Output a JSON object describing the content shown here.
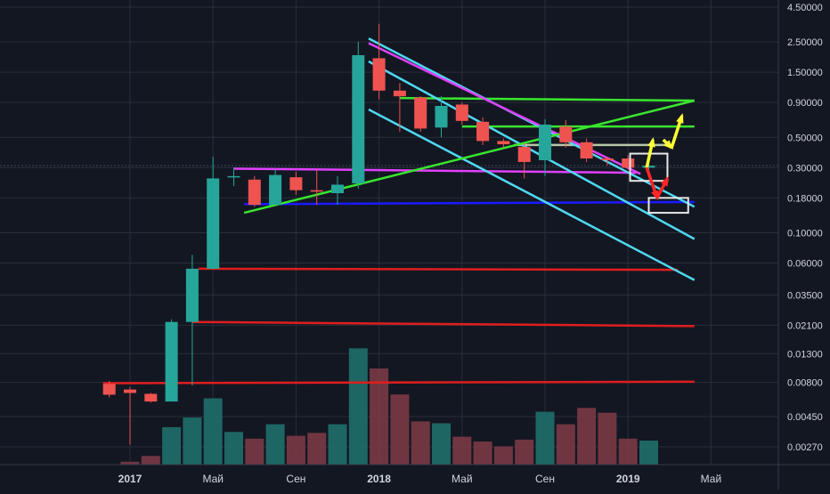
{
  "chart_data": {
    "type": "candlestick",
    "price_scale": "log",
    "grid": true,
    "y_ticks": [
      "4.50000",
      "2.50000",
      "1.50000",
      "0.90000",
      "0.50000",
      "0.30000",
      "0.18000",
      "0.10000",
      "0.06000",
      "0.03500",
      "0.02100",
      "0.01300",
      "0.00800",
      "0.00450",
      "0.00270"
    ],
    "y_tick_values": [
      4.5,
      2.5,
      1.5,
      0.9,
      0.5,
      0.3,
      0.18,
      0.1,
      0.06,
      0.035,
      0.021,
      0.013,
      0.008,
      0.0045,
      0.0027
    ],
    "x_ticks": [
      {
        "label": "2017",
        "month": 0,
        "bold": true
      },
      {
        "label": "Май",
        "month": 4,
        "bold": false
      },
      {
        "label": "Сен",
        "month": 8,
        "bold": false
      },
      {
        "label": "2018",
        "month": 12,
        "bold": true
      },
      {
        "label": "Май",
        "month": 16,
        "bold": false
      },
      {
        "label": "Сен",
        "month": 20,
        "bold": false
      },
      {
        "label": "2019",
        "month": 24,
        "bold": true
      },
      {
        "label": "Май",
        "month": 28,
        "bold": false
      }
    ],
    "candles": [
      {
        "month": -1,
        "o": 0.0078,
        "h": 0.0082,
        "l": 0.0062,
        "c": 0.0065
      },
      {
        "month": 0,
        "o": 0.0071,
        "h": 0.0074,
        "l": 0.0028,
        "c": 0.0067
      },
      {
        "month": 1,
        "o": 0.0066,
        "h": 0.0067,
        "l": 0.0057,
        "c": 0.0058
      },
      {
        "month": 2,
        "o": 0.0058,
        "h": 0.0232,
        "l": 0.0058,
        "c": 0.0222
      },
      {
        "month": 3,
        "o": 0.0222,
        "h": 0.069,
        "l": 0.0076,
        "c": 0.0545
      },
      {
        "month": 4,
        "o": 0.0545,
        "h": 0.36,
        "l": 0.054,
        "c": 0.25
      },
      {
        "month": 5,
        "o": 0.26,
        "h": 0.3,
        "l": 0.22,
        "c": 0.26
      },
      {
        "month": 6,
        "o": 0.245,
        "h": 0.26,
        "l": 0.155,
        "c": 0.16
      },
      {
        "month": 7,
        "o": 0.16,
        "h": 0.29,
        "l": 0.16,
        "c": 0.265
      },
      {
        "month": 8,
        "o": 0.255,
        "h": 0.28,
        "l": 0.19,
        "c": 0.205
      },
      {
        "month": 9,
        "o": 0.205,
        "h": 0.29,
        "l": 0.16,
        "c": 0.2
      },
      {
        "month": 10,
        "o": 0.195,
        "h": 0.26,
        "l": 0.16,
        "c": 0.225
      },
      {
        "month": 11,
        "o": 0.23,
        "h": 2.5,
        "l": 0.21,
        "c": 2.0
      },
      {
        "month": 12,
        "o": 1.9,
        "h": 3.4,
        "l": 0.95,
        "c": 1.1
      },
      {
        "month": 13,
        "o": 1.1,
        "h": 1.25,
        "l": 0.55,
        "c": 1.0
      },
      {
        "month": 14,
        "o": 0.98,
        "h": 1.0,
        "l": 0.55,
        "c": 0.58
      },
      {
        "month": 15,
        "o": 0.59,
        "h": 1.0,
        "l": 0.5,
        "c": 0.85
      },
      {
        "month": 16,
        "o": 0.87,
        "h": 0.9,
        "l": 0.62,
        "c": 0.66
      },
      {
        "month": 17,
        "o": 0.65,
        "h": 0.7,
        "l": 0.44,
        "c": 0.47
      },
      {
        "month": 18,
        "o": 0.47,
        "h": 0.49,
        "l": 0.42,
        "c": 0.445
      },
      {
        "month": 19,
        "o": 0.425,
        "h": 0.45,
        "l": 0.25,
        "c": 0.33
      },
      {
        "month": 20,
        "o": 0.34,
        "h": 0.68,
        "l": 0.26,
        "c": 0.62
      },
      {
        "month": 21,
        "o": 0.6,
        "h": 0.67,
        "l": 0.42,
        "c": 0.46
      },
      {
        "month": 22,
        "o": 0.46,
        "h": 0.49,
        "l": 0.33,
        "c": 0.35
      },
      {
        "month": 23,
        "o": 0.35,
        "h": 0.36,
        "l": 0.31,
        "c": 0.34
      },
      {
        "month": 24,
        "o": 0.35,
        "h": 0.37,
        "l": 0.29,
        "c": 0.3
      },
      {
        "month": 25,
        "o": 0.3,
        "h": 0.32,
        "l": 0.27,
        "c": 0.31
      }
    ],
    "volume": [
      {
        "month": 0,
        "v": 0.3,
        "up": false
      },
      {
        "month": 1,
        "v": 0.9,
        "up": false
      },
      {
        "month": 2,
        "v": 3.9,
        "up": true
      },
      {
        "month": 3,
        "v": 4.9,
        "up": true
      },
      {
        "month": 4,
        "v": 6.9,
        "up": true
      },
      {
        "month": 5,
        "v": 3.4,
        "up": true
      },
      {
        "month": 6,
        "v": 2.7,
        "up": false
      },
      {
        "month": 7,
        "v": 4.2,
        "up": true
      },
      {
        "month": 8,
        "v": 3.0,
        "up": false
      },
      {
        "month": 9,
        "v": 3.3,
        "up": false
      },
      {
        "month": 10,
        "v": 4.2,
        "up": true
      },
      {
        "month": 11,
        "v": 12.1,
        "up": true
      },
      {
        "month": 12,
        "v": 10.0,
        "up": false
      },
      {
        "month": 13,
        "v": 7.3,
        "up": false
      },
      {
        "month": 14,
        "v": 4.5,
        "up": false
      },
      {
        "month": 15,
        "v": 4.3,
        "up": true
      },
      {
        "month": 16,
        "v": 2.9,
        "up": false
      },
      {
        "month": 17,
        "v": 2.4,
        "up": false
      },
      {
        "month": 18,
        "v": 1.9,
        "up": false
      },
      {
        "month": 19,
        "v": 2.6,
        "up": false
      },
      {
        "month": 20,
        "v": 5.5,
        "up": true
      },
      {
        "month": 21,
        "v": 4.2,
        "up": false
      },
      {
        "month": 22,
        "v": 5.9,
        "up": false
      },
      {
        "month": 23,
        "v": 5.4,
        "up": false
      },
      {
        "month": 24,
        "v": 2.7,
        "up": false
      },
      {
        "month": 25,
        "v": 2.5,
        "up": true
      }
    ],
    "horizontal_lines": [
      {
        "name": "red-level-1",
        "color": "#e01e1e",
        "m1": 3.3,
        "p1": 0.0545,
        "m2": 26.4,
        "p2": 0.0535
      },
      {
        "name": "red-level-2",
        "color": "#e01e1e",
        "m1": 3.0,
        "p1": 0.0222,
        "m2": 27.2,
        "p2": 0.0207
      },
      {
        "name": "red-level-3",
        "color": "#e01e1e",
        "m1": -1.3,
        "p1": 0.0079,
        "m2": 27.2,
        "p2": 0.0081
      },
      {
        "name": "blue-support",
        "color": "#1a1aff",
        "m1": 5.5,
        "p1": 0.162,
        "m2": 27.2,
        "p2": 0.168
      },
      {
        "name": "magenta-level",
        "color": "#e040fb",
        "m1": 5.0,
        "p1": 0.295,
        "m2": 24.4,
        "p2": 0.275
      },
      {
        "name": "green-top",
        "color": "#39e62e",
        "m1": 13.0,
        "p1": 0.97,
        "m2": 27.2,
        "p2": 0.93
      },
      {
        "name": "green-mid",
        "color": "#39e62e",
        "m1": 16.0,
        "p1": 0.6,
        "m2": 27.2,
        "p2": 0.6
      },
      {
        "name": "gray-level",
        "color": "#b7c7a8",
        "m1": 18.5,
        "p1": 0.44,
        "m2": 25.8,
        "p2": 0.44
      }
    ],
    "trend_lines": [
      {
        "name": "cyan-upper",
        "color": "#4fd8f0",
        "m1": 11.5,
        "p1": 2.65,
        "m2": 27.2,
        "p2": 0.155
      },
      {
        "name": "cyan-middle",
        "color": "#4fd8f0",
        "m1": 11.5,
        "p1": 1.8,
        "m2": 27.2,
        "p2": 0.09
      },
      {
        "name": "cyan-lower",
        "color": "#4fd8f0",
        "m1": 11.5,
        "p1": 0.8,
        "m2": 27.2,
        "p2": 0.045
      },
      {
        "name": "magenta-trend",
        "color": "#e040fb",
        "m1": 11.5,
        "p1": 2.45,
        "m2": 24.6,
        "p2": 0.27
      },
      {
        "name": "green-rising",
        "color": "#39e62e",
        "m1": 5.5,
        "p1": 0.14,
        "m2": 27.2,
        "p2": 0.93
      }
    ],
    "boxes": [
      {
        "name": "upper-box",
        "m": 24.1,
        "top": 0.38,
        "bottom": 0.24,
        "w": 1.8
      },
      {
        "name": "lower-box",
        "m": 25.0,
        "top": 0.18,
        "bottom": 0.14,
        "w": 1.9
      }
    ],
    "arrows": [
      {
        "name": "yellow-up-1",
        "color": "#ffff33",
        "points": [
          [
            24.9,
            0.3
          ],
          [
            25.2,
            0.48
          ]
        ]
      },
      {
        "name": "yellow-down",
        "color": "#ffff33",
        "points": [
          [
            25.7,
            0.48
          ],
          [
            26.1,
            0.42
          ]
        ]
      },
      {
        "name": "yellow-up-2",
        "color": "#ffff33",
        "points": [
          [
            26.1,
            0.42
          ],
          [
            26.6,
            0.72
          ]
        ]
      },
      {
        "name": "red-down",
        "color": "#ff2626",
        "points": [
          [
            24.9,
            0.3
          ],
          [
            25.4,
            0.18
          ]
        ]
      },
      {
        "name": "red-up",
        "color": "#ff2626",
        "points": [
          [
            25.4,
            0.18
          ],
          [
            25.9,
            0.25
          ]
        ]
      }
    ],
    "colors": {
      "up": "#26a69a",
      "down": "#ef5350",
      "background": "#131722",
      "grid": "#2a2e39",
      "text": "#d1d4dc"
    }
  }
}
